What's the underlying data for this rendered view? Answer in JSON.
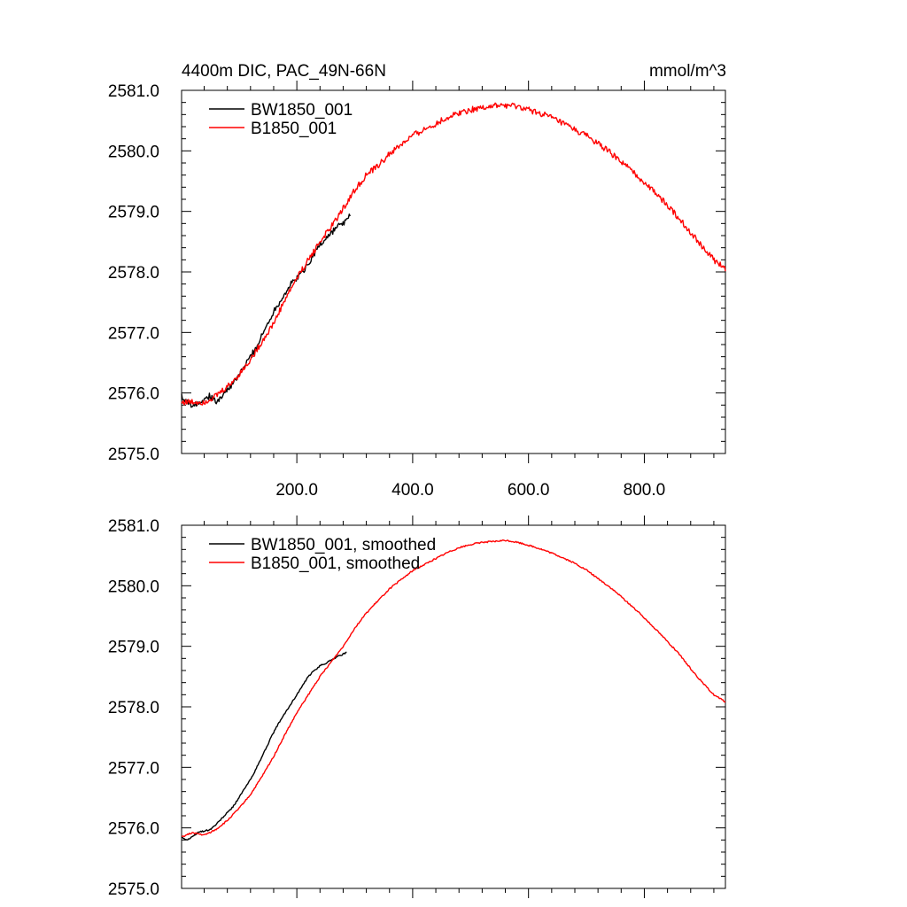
{
  "chart_data": [
    {
      "type": "line",
      "title": "4400m DIC, PAC_49N-66N",
      "units": "mmol/m^3",
      "xlabel": "",
      "ylabel": "",
      "xlim": [
        1,
        940
      ],
      "ylim": [
        2575.0,
        2581.0
      ],
      "x_ticks": [
        200.0,
        400.0,
        600.0,
        800.0
      ],
      "x_tick_labels": [
        "200.0",
        "400.0",
        "600.0",
        "800.0"
      ],
      "y_ticks": [
        2575.0,
        2576.0,
        2577.0,
        2578.0,
        2579.0,
        2580.0,
        2581.0
      ],
      "y_tick_labels": [
        "2575.0",
        "2576.0",
        "2577.0",
        "2578.0",
        "2579.0",
        "2580.0",
        "2581.0"
      ],
      "grid": false,
      "legend_position": "top-left",
      "series": [
        {
          "name": "BW1850_001",
          "color": "#000000",
          "noise": 0.05,
          "x": [
            1,
            10,
            20,
            30,
            40,
            50,
            60,
            70,
            80,
            90,
            100,
            110,
            120,
            130,
            140,
            150,
            160,
            170,
            180,
            190,
            200,
            210,
            220,
            230,
            240,
            250,
            260,
            270,
            280,
            290,
            293
          ],
          "y": [
            2575.95,
            2575.85,
            2575.8,
            2575.85,
            2575.9,
            2575.95,
            2575.85,
            2575.95,
            2576.05,
            2576.15,
            2576.3,
            2576.45,
            2576.6,
            2576.75,
            2576.95,
            2577.15,
            2577.35,
            2577.5,
            2577.65,
            2577.8,
            2577.9,
            2578.0,
            2578.15,
            2578.3,
            2578.45,
            2578.55,
            2578.65,
            2578.75,
            2578.8,
            2578.9,
            2579.0
          ]
        },
        {
          "name": "B1850_001",
          "color": "#ff0000",
          "noise": 0.05,
          "x": [
            1,
            20,
            40,
            60,
            80,
            100,
            120,
            140,
            160,
            180,
            200,
            220,
            240,
            260,
            280,
            300,
            320,
            340,
            360,
            380,
            400,
            420,
            440,
            460,
            480,
            500,
            520,
            540,
            560,
            580,
            600,
            620,
            640,
            660,
            680,
            700,
            720,
            740,
            760,
            780,
            800,
            820,
            840,
            860,
            880,
            900,
            920,
            940
          ],
          "y": [
            2575.85,
            2575.85,
            2575.85,
            2575.95,
            2576.1,
            2576.3,
            2576.55,
            2576.85,
            2577.15,
            2577.55,
            2577.9,
            2578.2,
            2578.5,
            2578.75,
            2579.05,
            2579.35,
            2579.6,
            2579.75,
            2579.95,
            2580.1,
            2580.25,
            2580.35,
            2580.45,
            2580.55,
            2580.63,
            2580.68,
            2580.72,
            2580.74,
            2580.75,
            2580.73,
            2580.68,
            2580.62,
            2580.55,
            2580.45,
            2580.35,
            2580.25,
            2580.12,
            2579.98,
            2579.82,
            2579.65,
            2579.48,
            2579.3,
            2579.1,
            2578.88,
            2578.65,
            2578.42,
            2578.2,
            2578.05
          ]
        }
      ]
    },
    {
      "type": "line",
      "title": "",
      "xlim": [
        1,
        940
      ],
      "ylim": [
        2575.0,
        2581.0
      ],
      "x_ticks": [
        200.0,
        400.0,
        600.0,
        800.0
      ],
      "x_tick_labels": [],
      "y_ticks": [
        2575.0,
        2576.0,
        2577.0,
        2578.0,
        2579.0,
        2580.0,
        2581.0
      ],
      "y_tick_labels": [
        "2575.0",
        "2576.0",
        "2577.0",
        "2578.0",
        "2579.0",
        "2580.0",
        "2581.0"
      ],
      "grid": false,
      "legend_position": "top-left",
      "series": [
        {
          "name": "BW1850_001, smoothed",
          "color": "#000000",
          "noise": 0.012,
          "x": [
            1,
            10,
            20,
            30,
            40,
            50,
            60,
            70,
            80,
            90,
            100,
            110,
            120,
            130,
            140,
            150,
            160,
            170,
            180,
            190,
            200,
            210,
            220,
            230,
            240,
            250,
            260,
            270,
            280,
            287
          ],
          "y": [
            2575.85,
            2575.8,
            2575.85,
            2575.93,
            2575.95,
            2575.97,
            2576.05,
            2576.15,
            2576.25,
            2576.35,
            2576.5,
            2576.65,
            2576.8,
            2576.98,
            2577.18,
            2577.38,
            2577.58,
            2577.75,
            2577.9,
            2578.05,
            2578.2,
            2578.35,
            2578.5,
            2578.6,
            2578.68,
            2578.72,
            2578.78,
            2578.83,
            2578.87,
            2578.9
          ]
        },
        {
          "name": "B1850_001, smoothed",
          "color": "#ff0000",
          "noise": 0.012,
          "x": [
            1,
            20,
            40,
            60,
            80,
            100,
            120,
            140,
            160,
            180,
            200,
            220,
            240,
            260,
            280,
            300,
            320,
            340,
            360,
            380,
            400,
            420,
            440,
            460,
            480,
            500,
            520,
            540,
            560,
            580,
            600,
            620,
            640,
            660,
            680,
            700,
            720,
            740,
            760,
            780,
            800,
            820,
            840,
            860,
            880,
            900,
            920,
            940
          ],
          "y": [
            2575.85,
            2575.92,
            2575.88,
            2575.97,
            2576.12,
            2576.32,
            2576.55,
            2576.85,
            2577.18,
            2577.55,
            2577.9,
            2578.2,
            2578.5,
            2578.75,
            2579.0,
            2579.3,
            2579.55,
            2579.75,
            2579.95,
            2580.1,
            2580.25,
            2580.35,
            2580.45,
            2580.55,
            2580.63,
            2580.68,
            2580.72,
            2580.73,
            2580.75,
            2580.72,
            2580.67,
            2580.61,
            2580.54,
            2580.46,
            2580.37,
            2580.26,
            2580.12,
            2579.98,
            2579.82,
            2579.65,
            2579.47,
            2579.28,
            2579.08,
            2578.87,
            2578.63,
            2578.4,
            2578.2,
            2578.08
          ]
        }
      ]
    }
  ]
}
